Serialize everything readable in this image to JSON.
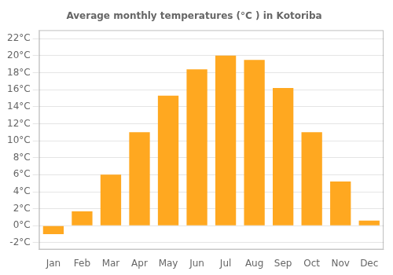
{
  "chart_data": {
    "type": "bar",
    "title": "Average monthly temperatures (°C ) in Kotoriba",
    "categories": [
      "Jan",
      "Feb",
      "Mar",
      "Apr",
      "May",
      "Jun",
      "Jul",
      "Aug",
      "Sep",
      "Oct",
      "Nov",
      "Dec"
    ],
    "values": [
      -1.0,
      1.7,
      6.0,
      11.0,
      15.3,
      18.4,
      20.0,
      19.5,
      16.2,
      11.0,
      5.2,
      0.6
    ],
    "color": "#FFA820",
    "ylim": [
      -2.8,
      23.0
    ],
    "yticks": [
      {
        "value": -2,
        "label": "-2°C"
      },
      {
        "value": 0,
        "label": "0°C"
      },
      {
        "value": 2,
        "label": "2°C"
      },
      {
        "value": 4,
        "label": "4°C"
      },
      {
        "value": 6,
        "label": "6°C"
      },
      {
        "value": 8,
        "label": "8°C"
      },
      {
        "value": 10,
        "label": "10°C"
      },
      {
        "value": 12,
        "label": "12°C"
      },
      {
        "value": 14,
        "label": "14°C"
      },
      {
        "value": 16,
        "label": "16°C"
      },
      {
        "value": 18,
        "label": "18°C"
      },
      {
        "value": 20,
        "label": "20°C"
      },
      {
        "value": 22,
        "label": "22°C"
      }
    ],
    "grid": true
  }
}
